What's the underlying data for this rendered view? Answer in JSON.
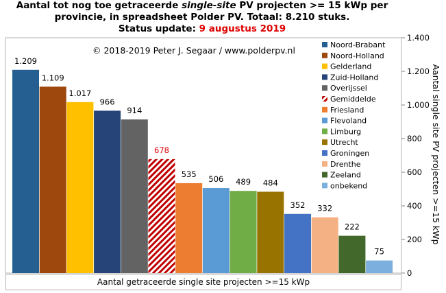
{
  "title": {
    "line1_pre": "Aantal tot nog toe getraceerde ",
    "line1_italic": "single-site",
    "line1_post": " PV projecten >= 15 kWp per",
    "line2": "provincie, in spreadsheet Polder PV. Totaal: 8.210 stuks.",
    "line3_label": "Status update: ",
    "line3_date": "9 augustus 2019"
  },
  "copyright": "© 2018-2019  Peter J. Segaar / www.polderpv.nl",
  "chart_data": {
    "type": "bar",
    "categories": [
      "Noord-Brabant",
      "Noord-Holland",
      "Gelderland",
      "Zuid-Holland",
      "Overijssel",
      "Gemiddelde",
      "Friesland",
      "Flevoland",
      "Limburg",
      "Utrecht",
      "Groningen",
      "Drenthe",
      "Zeeland",
      "onbekend"
    ],
    "values": [
      1209,
      1109,
      1017,
      966,
      914,
      678,
      535,
      506,
      489,
      484,
      352,
      332,
      222,
      75
    ],
    "value_labels": [
      "1.209",
      "1.109",
      "1.017",
      "966",
      "914",
      "678",
      "535",
      "506",
      "489",
      "484",
      "352",
      "332",
      "222",
      "75"
    ],
    "colors": [
      "#255e91",
      "#9e480e",
      "#ffc000",
      "#264478",
      "#636363",
      "hatch-red",
      "#ed7d31",
      "#5b9bd5",
      "#70ad47",
      "#997300",
      "#4472c4",
      "#f4b183",
      "#43682b",
      "#7cafdd"
    ],
    "highlight_label_color": "#e00000",
    "xlabel": "Aantal getraceerde single site projecten >=15 kWp",
    "ylabel": "Aantal single site PV projecten >=15 kWp",
    "ylim": [
      0,
      1400
    ],
    "yticks": [
      0,
      200,
      400,
      600,
      800,
      1000,
      1200,
      1400
    ],
    "ytick_labels": [
      "0",
      "200",
      "400",
      "600",
      "800",
      "1.000",
      "1.200",
      "1.400"
    ],
    "axis_side": "right",
    "legend_position": "right",
    "grid": false
  }
}
